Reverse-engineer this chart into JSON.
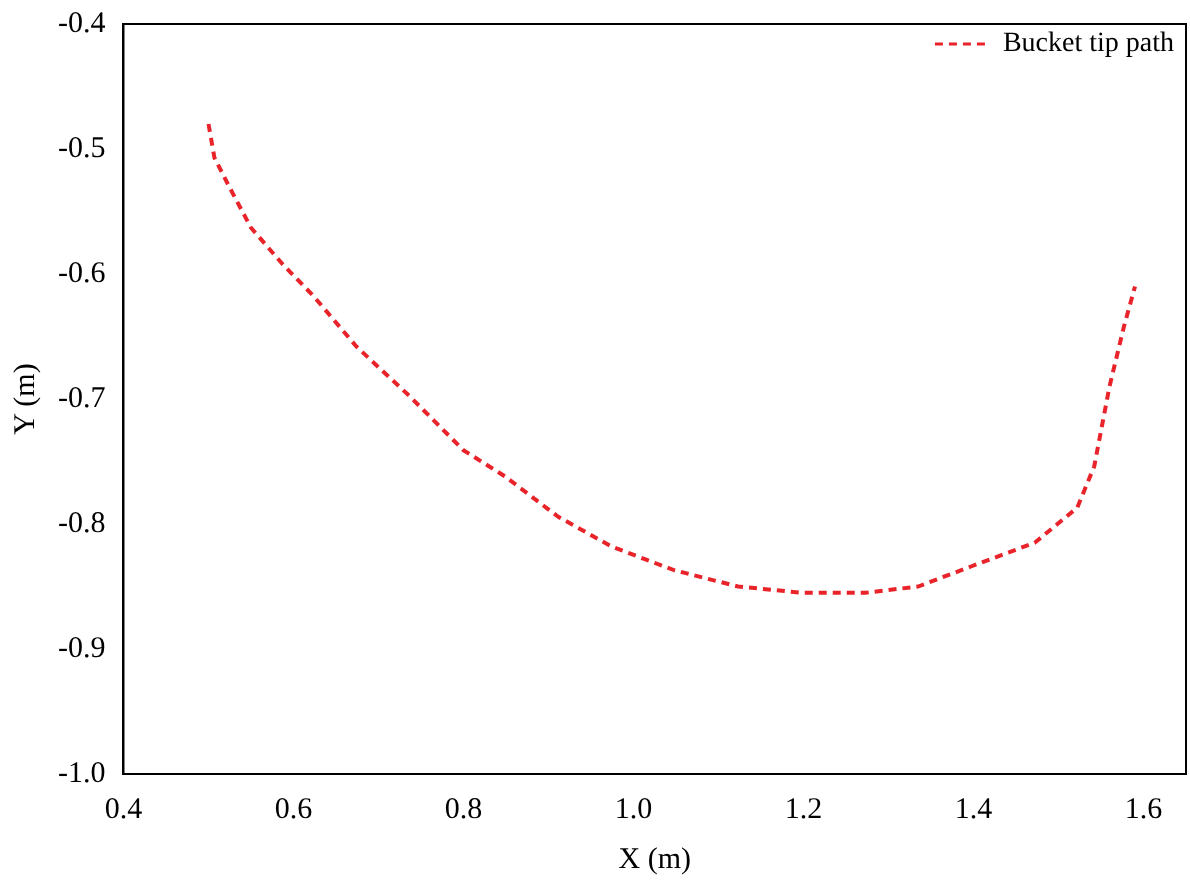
{
  "chart_data": {
    "type": "line",
    "xlabel": "X (m)",
    "ylabel": "Y (m)",
    "xlim": [
      0.4,
      1.65
    ],
    "xticks": [
      {
        "value": 0.4,
        "label": "0.4"
      },
      {
        "value": 0.6,
        "label": "0.6"
      },
      {
        "value": 0.8,
        "label": "0.8"
      },
      {
        "value": 1.0,
        "label": "1.0"
      },
      {
        "value": 1.2,
        "label": "1.2"
      },
      {
        "value": 1.4,
        "label": "1.4"
      },
      {
        "value": 1.6,
        "label": "1.6"
      }
    ],
    "ylim": [
      -1.0,
      -0.4
    ],
    "yticks": [
      {
        "value": -1.0,
        "label": "-1.0"
      },
      -0.9,
      -0.8,
      -0.7,
      -0.6,
      -0.5,
      -0.4
    ],
    "grid": false,
    "legend": "top right",
    "marker": "none",
    "line_style": "dashed",
    "series": [
      {
        "name": "Bucket tip path",
        "color": "#e8232a",
        "x": [
          0.5,
          0.507,
          0.525,
          0.55,
          0.587,
          0.624,
          0.674,
          0.737,
          0.8,
          0.849,
          0.911,
          0.974,
          1.048,
          1.123,
          1.198,
          1.273,
          1.335,
          1.397,
          1.472,
          1.522,
          1.542,
          1.56,
          1.577,
          1.59
        ],
        "values": [
          -0.48,
          -0.507,
          -0.531,
          -0.563,
          -0.592,
          -0.618,
          -0.658,
          -0.698,
          -0.741,
          -0.762,
          -0.794,
          -0.818,
          -0.837,
          -0.85,
          -0.855,
          -0.855,
          -0.85,
          -0.834,
          -0.815,
          -0.787,
          -0.754,
          -0.69,
          -0.642,
          -0.61
        ]
      }
    ]
  }
}
